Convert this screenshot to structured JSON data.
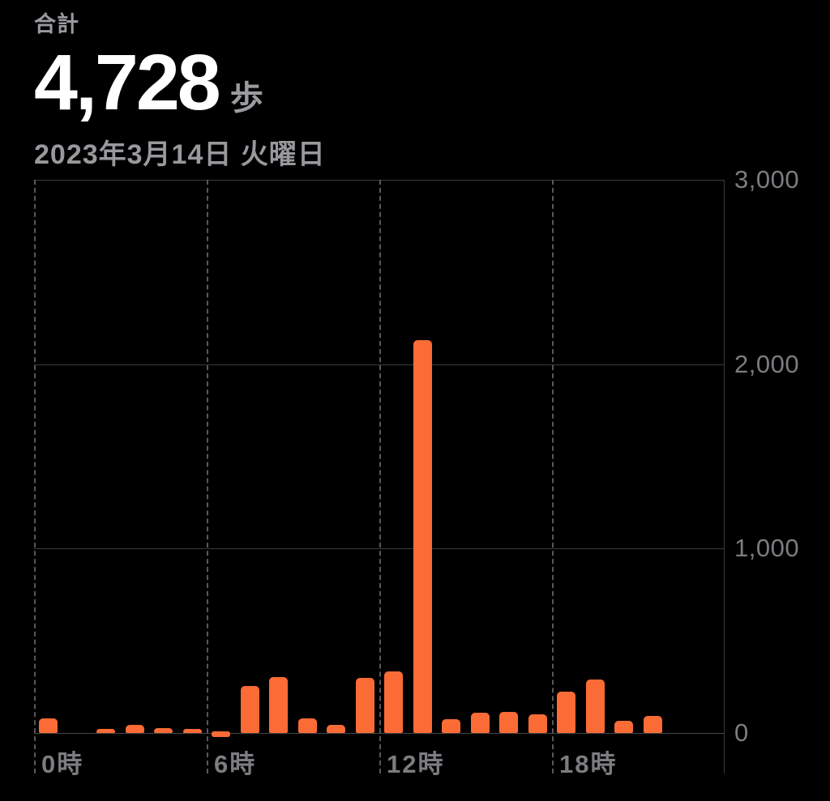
{
  "header": {
    "total_label": "合計",
    "total_value": "4,728",
    "total_unit": "歩",
    "date": "2023年3月14日 火曜日"
  },
  "chart_data": {
    "type": "bar",
    "title": "歩数 (steps per hour)",
    "x_unit": "hour of day",
    "x": [
      0,
      1,
      2,
      3,
      4,
      5,
      6,
      7,
      8,
      9,
      10,
      11,
      12,
      13,
      14,
      15,
      16,
      17,
      18,
      19,
      20,
      21,
      22,
      23
    ],
    "values": [
      80,
      0,
      20,
      45,
      25,
      20,
      15,
      255,
      305,
      80,
      45,
      300,
      335,
      2130,
      75,
      110,
      115,
      100,
      225,
      290,
      65,
      93,
      0,
      0
    ],
    "total": 4728,
    "ylim": [
      0,
      3000
    ],
    "y_ticks": [
      0,
      1000,
      2000,
      3000
    ],
    "y_tick_labels": [
      "0",
      "1,000",
      "2,000",
      "3,000"
    ],
    "x_tick_hours": [
      0,
      6,
      12,
      18
    ],
    "x_tick_labels": [
      "0時",
      "6時",
      "12時",
      "18時"
    ],
    "legend": "none",
    "grid": "horizontal solid lines at y ticks, vertical dashed lines at 6-hour marks",
    "bar_color": "#FB6B35"
  },
  "colors": {
    "background": "#000000",
    "bar": "#FB6B35",
    "value_text": "#FFFFFF",
    "secondary_text": "#98989D",
    "tick_text": "#7C7C81",
    "gridline": "#3B3B3E",
    "dashed_gridline": "#58585C"
  }
}
